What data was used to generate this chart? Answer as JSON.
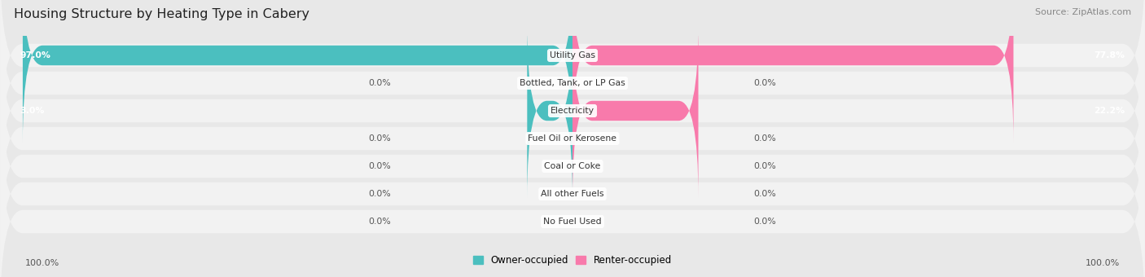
{
  "title": "Housing Structure by Heating Type in Cabery",
  "source": "Source: ZipAtlas.com",
  "categories": [
    "Utility Gas",
    "Bottled, Tank, or LP Gas",
    "Electricity",
    "Fuel Oil or Kerosene",
    "Coal or Coke",
    "All other Fuels",
    "No Fuel Used"
  ],
  "owner_values": [
    97.0,
    0.0,
    3.0,
    0.0,
    0.0,
    0.0,
    0.0
  ],
  "renter_values": [
    77.8,
    0.0,
    22.2,
    0.0,
    0.0,
    0.0,
    0.0
  ],
  "owner_color": "#4bbfbf",
  "renter_color": "#f87aab",
  "bg_color": "#e8e8e8",
  "row_bg_color": "#f2f2f2",
  "max_value": 100.0,
  "left_label": "100.0%",
  "right_label": "100.0%",
  "legend_owner": "Owner-occupied",
  "legend_renter": "Renter-occupied",
  "min_bar_width": 8.0
}
